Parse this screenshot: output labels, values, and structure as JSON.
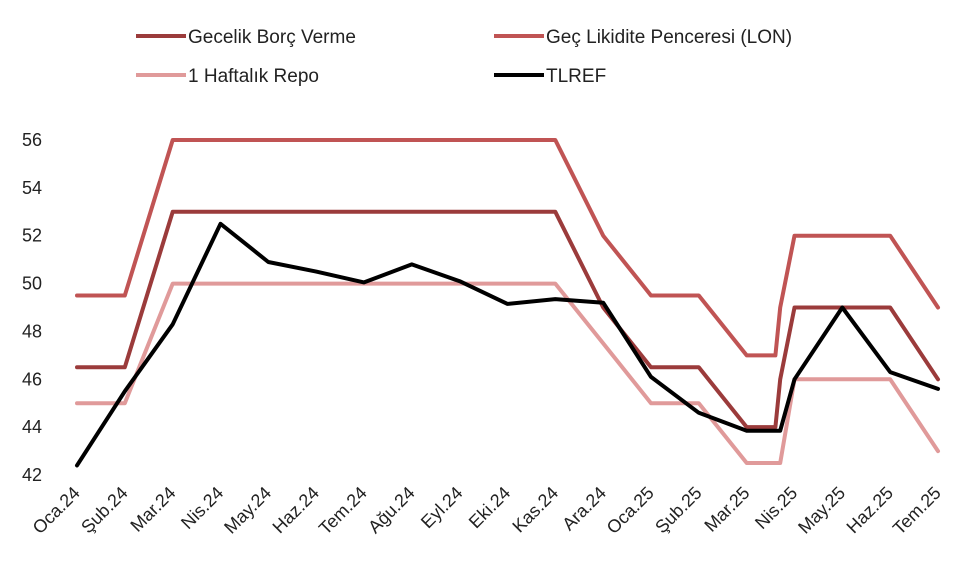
{
  "chart_data": {
    "type": "line",
    "title": "",
    "xlabel": "",
    "ylabel": "",
    "ylim": [
      42,
      56
    ],
    "yticks": [
      42,
      44,
      46,
      48,
      50,
      52,
      54,
      56
    ],
    "grid": false,
    "legend_position": "top",
    "categories": [
      "Oca.24",
      "Şub.24",
      "Mar.24",
      "Nis.24",
      "May.24",
      "Haz.24",
      "Tem.24",
      "Ağu.24",
      "Eyl.24",
      "Eki.24",
      "Kas.24",
      "Ara.24",
      "Oca.25",
      "Şub.25",
      "Mar.25",
      "Nis.25",
      "May.25",
      "Haz.25",
      "Tem.25"
    ],
    "series": [
      {
        "name": "Gecelik Borç Verme",
        "color": "#9b3b3b",
        "points": [
          [
            "Oca.24",
            46.5
          ],
          [
            "Şub.24",
            46.5
          ],
          [
            "Mar.24",
            53
          ],
          [
            "Nis.24",
            53
          ],
          [
            "May.24",
            53
          ],
          [
            "Haz.24",
            53
          ],
          [
            "Tem.24",
            53
          ],
          [
            "Ağu.24",
            53
          ],
          [
            "Eyl.24",
            53
          ],
          [
            "Eki.24",
            53
          ],
          [
            "Kas.24",
            53
          ],
          [
            "Ara.24",
            49
          ],
          [
            "Oca.25",
            46.5
          ],
          [
            "Şub.25",
            46.5
          ],
          [
            "Mar.25",
            44
          ],
          [
            "Mar.25",
            44
          ],
          [
            "Nis.25",
            46
          ],
          [
            "Nis.25",
            49
          ],
          [
            "May.25",
            49
          ],
          [
            "Haz.25",
            49
          ],
          [
            "Tem.25",
            46
          ]
        ]
      },
      {
        "name": "Geç Likidite Penceresi (LON)",
        "color": "#c05454",
        "points": [
          [
            "Oca.24",
            49.5
          ],
          [
            "Şub.24",
            49.5
          ],
          [
            "Mar.24",
            56
          ],
          [
            "Nis.24",
            56
          ],
          [
            "May.24",
            56
          ],
          [
            "Haz.24",
            56
          ],
          [
            "Tem.24",
            56
          ],
          [
            "Ağu.24",
            56
          ],
          [
            "Eyl.24",
            56
          ],
          [
            "Eki.24",
            56
          ],
          [
            "Kas.24",
            56
          ],
          [
            "Ara.24",
            52
          ],
          [
            "Oca.25",
            49.5
          ],
          [
            "Şub.25",
            49.5
          ],
          [
            "Mar.25",
            47
          ],
          [
            "Mar.25",
            47
          ],
          [
            "Nis.25",
            49
          ],
          [
            "Nis.25",
            52
          ],
          [
            "May.25",
            52
          ],
          [
            "Haz.25",
            52
          ],
          [
            "Tem.25",
            49
          ]
        ]
      },
      {
        "name": "1 Haftalık Repo",
        "color": "#e09a9a",
        "points": [
          [
            "Oca.24",
            45
          ],
          [
            "Şub.24",
            45
          ],
          [
            "Mar.24",
            50
          ],
          [
            "Nis.24",
            50
          ],
          [
            "May.24",
            50
          ],
          [
            "Haz.24",
            50
          ],
          [
            "Tem.24",
            50
          ],
          [
            "Ağu.24",
            50
          ],
          [
            "Eyl.24",
            50
          ],
          [
            "Eki.24",
            50
          ],
          [
            "Kas.24",
            50
          ],
          [
            "Ara.24",
            47.5
          ],
          [
            "Oca.25",
            45
          ],
          [
            "Şub.25",
            45
          ],
          [
            "Mar.25",
            42.5
          ],
          [
            "Mar.25",
            42.5
          ],
          [
            "Nis.25",
            42.5
          ],
          [
            "Nis.25",
            46
          ],
          [
            "May.25",
            46
          ],
          [
            "Haz.25",
            46
          ],
          [
            "Tem.25",
            43
          ]
        ]
      },
      {
        "name": "TLREF",
        "color": "#000000",
        "points": [
          [
            "Oca.24",
            42.4
          ],
          [
            "Şub.24",
            45.5
          ],
          [
            "Mar.24",
            48.3
          ],
          [
            "Nis.24",
            52.5
          ],
          [
            "May.24",
            50.9
          ],
          [
            "Haz.24",
            50.5
          ],
          [
            "Tem.24",
            50.05
          ],
          [
            "Ağu.24",
            50.8
          ],
          [
            "Eyl.24",
            50.1
          ],
          [
            "Eki.24",
            49.15
          ],
          [
            "Kas.24",
            49.35
          ],
          [
            "Ara.24",
            49.2
          ],
          [
            "Oca.25",
            46.1
          ],
          [
            "Şub.25",
            44.6
          ],
          [
            "Mar.25",
            43.85
          ],
          [
            "Nis.25",
            43.85
          ],
          [
            "Nis.25",
            46
          ],
          [
            "May.25",
            49
          ],
          [
            "Haz.25",
            46.3
          ],
          [
            "Tem.25",
            45.6
          ]
        ]
      }
    ]
  }
}
